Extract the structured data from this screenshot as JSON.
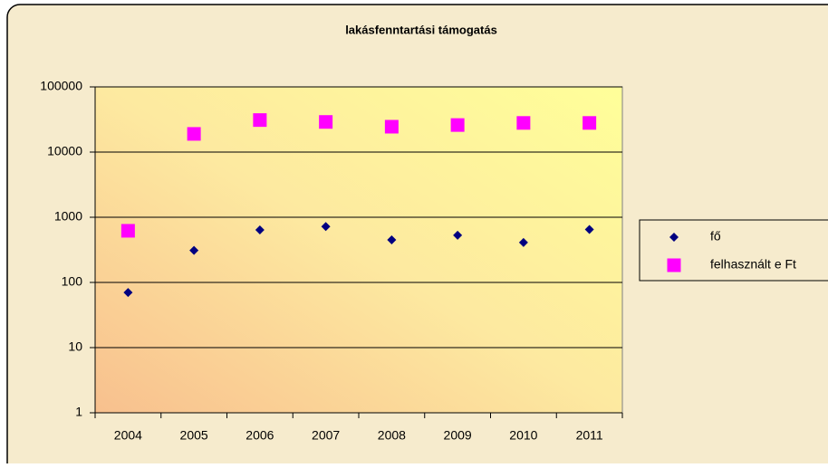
{
  "chart_data": {
    "type": "scatter",
    "title": "lakásfenntartási támogatás",
    "categories": [
      "2004",
      "2005",
      "2006",
      "2007",
      "2008",
      "2009",
      "2010",
      "2011"
    ],
    "series": [
      {
        "name": "fő",
        "color": "#000080",
        "marker": "diamond",
        "values": [
          70,
          310,
          640,
          720,
          450,
          530,
          410,
          650
        ]
      },
      {
        "name": "felhasznált e Ft",
        "color": "#ff00ff",
        "marker": "square",
        "values": [
          620,
          19000,
          31000,
          29000,
          24500,
          26000,
          28000,
          28000
        ]
      }
    ],
    "ylim": [
      1,
      100000
    ],
    "yticks": [
      1,
      10,
      100,
      1000,
      10000,
      100000
    ],
    "log_scale": true,
    "grid": true,
    "legend": "right"
  }
}
